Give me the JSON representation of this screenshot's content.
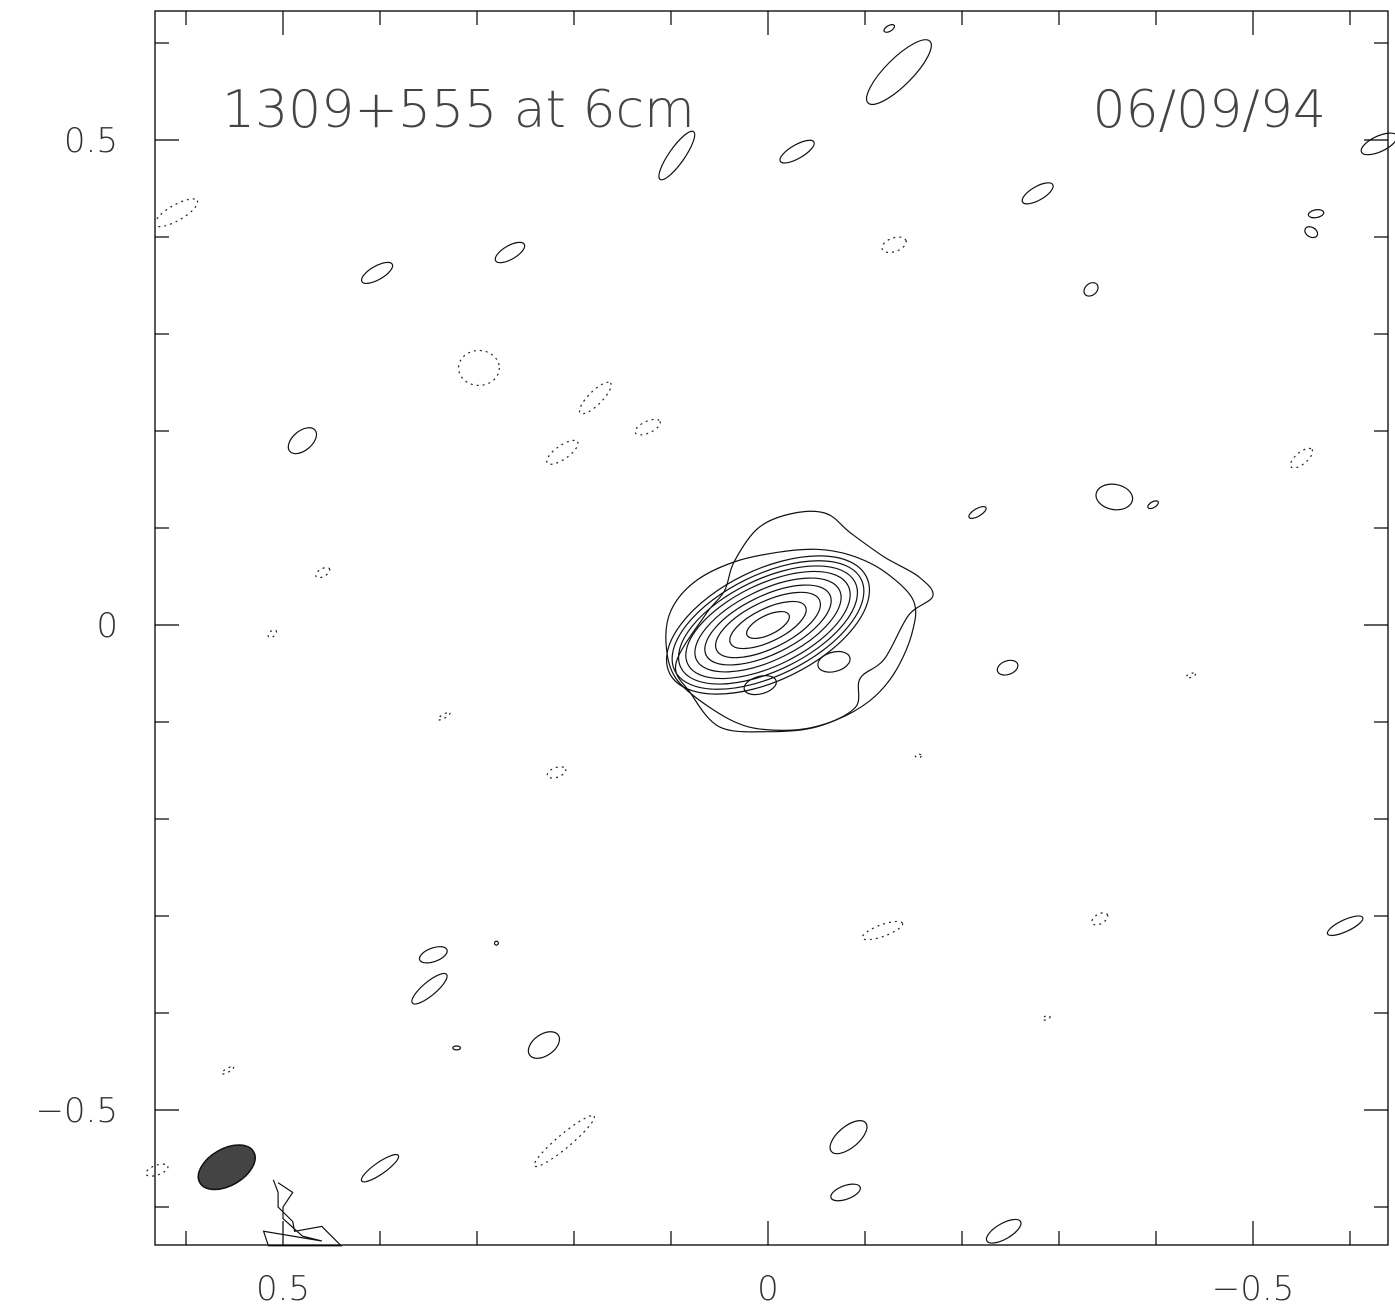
{
  "chart_data": {
    "type": "contour",
    "title": "1309+555 at 6cm",
    "date": "06/09/94",
    "xlabel": "",
    "ylabel": "",
    "xlim": [
      0.635,
      -0.635
    ],
    "ylim": [
      -0.635,
      0.635
    ],
    "x_axis_reversed": true,
    "x_tick_labels": [
      {
        "value": 0.5,
        "label": "0.5"
      },
      {
        "value": 0,
        "label": "0"
      },
      {
        "value": -0.5,
        "label": "−0.5"
      }
    ],
    "y_tick_labels": [
      {
        "value": 0.5,
        "label": "0.5"
      },
      {
        "value": 0,
        "label": "0"
      },
      {
        "value": -0.5,
        "label": "−0.5"
      }
    ],
    "minor_tick_step": 0.1,
    "source_peak": {
      "x": 0.0,
      "y": 0.0
    },
    "central_component": {
      "center": [
        0.0,
        0.0
      ],
      "position_angle_deg": -26,
      "levels": [
        {
          "a": 0.024,
          "b": 0.01
        },
        {
          "a": 0.043,
          "b": 0.017
        },
        {
          "a": 0.059,
          "b": 0.024
        },
        {
          "a": 0.071,
          "b": 0.03
        },
        {
          "a": 0.082,
          "b": 0.036
        },
        {
          "a": 0.092,
          "b": 0.042
        },
        {
          "a": 0.1,
          "b": 0.047
        },
        {
          "a": 0.107,
          "b": 0.052
        },
        {
          "a": 0.113,
          "b": 0.057
        }
      ],
      "outer_contours": [
        [
          [
            0.095,
            -0.055
          ],
          [
            0.06,
            -0.085
          ],
          [
            0.02,
            -0.105
          ],
          [
            -0.03,
            -0.108
          ],
          [
            -0.07,
            -0.098
          ],
          [
            -0.105,
            -0.078
          ],
          [
            -0.13,
            -0.05
          ],
          [
            -0.148,
            -0.01
          ],
          [
            -0.15,
            0.025
          ],
          [
            -0.12,
            0.055
          ],
          [
            -0.085,
            0.072
          ],
          [
            -0.05,
            0.078
          ],
          [
            -0.01,
            0.075
          ],
          [
            0.035,
            0.065
          ],
          [
            0.075,
            0.045
          ],
          [
            0.1,
            0.015
          ],
          [
            0.105,
            -0.02
          ]
        ],
        [
          [
            0.05,
            -0.105
          ],
          [
            0.0,
            -0.11
          ],
          [
            -0.05,
            -0.105
          ],
          [
            -0.09,
            -0.085
          ],
          [
            -0.095,
            -0.055
          ],
          [
            -0.12,
            -0.035
          ],
          [
            -0.145,
            0.01
          ],
          [
            -0.17,
            0.03
          ],
          [
            -0.155,
            0.05
          ],
          [
            -0.12,
            0.07
          ],
          [
            -0.085,
            0.095
          ],
          [
            -0.06,
            0.115
          ],
          [
            -0.025,
            0.115
          ],
          [
            0.01,
            0.1
          ],
          [
            0.035,
            0.065
          ],
          [
            0.045,
            0.035
          ],
          [
            0.065,
            0.01
          ],
          [
            0.095,
            -0.04
          ],
          [
            0.08,
            -0.07
          ]
        ]
      ],
      "inner_blobs": [
        {
          "center": [
            0.008,
            -0.062
          ],
          "a": 0.017,
          "b": 0.009,
          "angle": -15
        },
        {
          "center": [
            -0.068,
            -0.038
          ],
          "a": 0.017,
          "b": 0.01,
          "angle": -15
        }
      ]
    },
    "positive_noise_contours": [
      {
        "center": [
          0.48,
          0.19
        ],
        "a": 0.017,
        "b": 0.01,
        "angle": -40
      },
      {
        "center": [
          0.403,
          0.363
        ],
        "a": 0.018,
        "b": 0.007,
        "angle": -30
      },
      {
        "center": [
          0.266,
          0.384
        ],
        "a": 0.017,
        "b": 0.007,
        "angle": -30
      },
      {
        "center": [
          0.094,
          0.484
        ],
        "a": 0.03,
        "b": 0.008,
        "angle": -55
      },
      {
        "center": [
          -0.03,
          0.488
        ],
        "a": 0.02,
        "b": 0.007,
        "angle": -30
      },
      {
        "center": [
          -0.135,
          0.57
        ],
        "a": 0.045,
        "b": 0.014,
        "angle": -45
      },
      {
        "center": [
          -0.125,
          0.615
        ],
        "a": 0.006,
        "b": 0.003,
        "angle": -30
      },
      {
        "center": [
          -0.278,
          0.445
        ],
        "a": 0.018,
        "b": 0.007,
        "angle": -30
      },
      {
        "center": [
          -0.333,
          0.346
        ],
        "a": 0.008,
        "b": 0.006,
        "angle": -40
      },
      {
        "center": [
          -0.357,
          0.132
        ],
        "a": 0.019,
        "b": 0.013,
        "angle": 10
      },
      {
        "center": [
          -0.397,
          0.124
        ],
        "a": 0.006,
        "b": 0.003,
        "angle": -30
      },
      {
        "center": [
          -0.216,
          0.116
        ],
        "a": 0.01,
        "b": 0.004,
        "angle": -30
      },
      {
        "center": [
          -0.247,
          -0.044
        ],
        "a": 0.011,
        "b": 0.007,
        "angle": -20
      },
      {
        "center": [
          -0.565,
          0.424
        ],
        "a": 0.008,
        "b": 0.004,
        "angle": -10
      },
      {
        "center": [
          -0.56,
          0.405
        ],
        "a": 0.007,
        "b": 0.005,
        "angle": 30
      },
      {
        "center": [
          -0.63,
          0.496
        ],
        "a": 0.02,
        "b": 0.008,
        "angle": -25
      },
      {
        "center": [
          -0.595,
          -0.31
        ],
        "a": 0.02,
        "b": 0.006,
        "angle": -25
      },
      {
        "center": [
          0.345,
          -0.34
        ],
        "a": 0.015,
        "b": 0.007,
        "angle": -20
      },
      {
        "center": [
          0.349,
          -0.375
        ],
        "a": 0.023,
        "b": 0.007,
        "angle": -40
      },
      {
        "center": [
          0.231,
          -0.433
        ],
        "a": 0.018,
        "b": 0.011,
        "angle": -35
      },
      {
        "center": [
          0.321,
          -0.436
        ],
        "a": 0.004,
        "b": 0.002,
        "angle": 0
      },
      {
        "center": [
          0.28,
          -0.328
        ],
        "a": 0.002,
        "b": 0.002,
        "angle": 0
      },
      {
        "center": [
          -0.083,
          -0.528
        ],
        "a": 0.023,
        "b": 0.011,
        "angle": -40
      },
      {
        "center": [
          -0.08,
          -0.585
        ],
        "a": 0.016,
        "b": 0.007,
        "angle": -20
      },
      {
        "center": [
          0.4,
          -0.56
        ],
        "a": 0.023,
        "b": 0.006,
        "angle": -35
      },
      {
        "center": [
          -0.243,
          -0.625
        ],
        "a": 0.02,
        "b": 0.008,
        "angle": -30
      }
    ],
    "lower_left_contour": [
      [
        0.51,
        -0.572
      ],
      [
        0.505,
        -0.585
      ],
      [
        0.505,
        -0.6
      ],
      [
        0.49,
        -0.615
      ],
      [
        0.488,
        -0.625
      ],
      [
        0.46,
        -0.62
      ],
      [
        0.44,
        -0.64
      ],
      [
        0.515,
        -0.64
      ],
      [
        0.52,
        -0.625
      ],
      [
        0.46,
        -0.635
      ],
      [
        0.48,
        -0.63
      ],
      [
        0.5,
        -0.612
      ],
      [
        0.5,
        -0.6
      ],
      [
        0.49,
        -0.585
      ],
      [
        0.505,
        -0.575
      ]
    ],
    "negative_noise_contours": [
      {
        "center": [
          0.61,
          0.425
        ],
        "a": 0.025,
        "b": 0.008,
        "angle": -30
      },
      {
        "center": [
          0.298,
          0.265
        ],
        "a": 0.021,
        "b": 0.018,
        "angle": 0
      },
      {
        "center": [
          0.178,
          0.234
        ],
        "a": 0.022,
        "b": 0.007,
        "angle": -45
      },
      {
        "center": [
          0.124,
          0.204
        ],
        "a": 0.014,
        "b": 0.006,
        "angle": -25
      },
      {
        "center": [
          0.212,
          0.178
        ],
        "a": 0.019,
        "b": 0.007,
        "angle": -35
      },
      {
        "center": [
          -0.13,
          0.392
        ],
        "a": 0.013,
        "b": 0.007,
        "angle": -20
      },
      {
        "center": [
          -0.55,
          0.172
        ],
        "a": 0.014,
        "b": 0.006,
        "angle": -40
      },
      {
        "center": [
          0.459,
          0.054
        ],
        "a": 0.008,
        "b": 0.004,
        "angle": -30
      },
      {
        "center": [
          0.511,
          -0.009
        ],
        "a": 0.005,
        "b": 0.003,
        "angle": -40
      },
      {
        "center": [
          0.334,
          -0.094
        ],
        "a": 0.007,
        "b": 0.002,
        "angle": -30
      },
      {
        "center": [
          0.218,
          -0.152
        ],
        "a": 0.01,
        "b": 0.005,
        "angle": -20
      },
      {
        "center": [
          -0.155,
          -0.135
        ],
        "a": 0.003,
        "b": 0.002,
        "angle": 0
      },
      {
        "center": [
          -0.436,
          -0.052
        ],
        "a": 0.005,
        "b": 0.002,
        "angle": -20
      },
      {
        "center": [
          -0.118,
          -0.315
        ],
        "a": 0.022,
        "b": 0.006,
        "angle": -20
      },
      {
        "center": [
          -0.342,
          -0.303
        ],
        "a": 0.009,
        "b": 0.005,
        "angle": -30
      },
      {
        "center": [
          -0.287,
          -0.405
        ],
        "a": 0.004,
        "b": 0.002,
        "angle": -20
      },
      {
        "center": [
          0.557,
          -0.459
        ],
        "a": 0.007,
        "b": 0.002,
        "angle": -30
      },
      {
        "center": [
          0.21,
          -0.532
        ],
        "a": 0.04,
        "b": 0.007,
        "angle": -40
      },
      {
        "center": [
          0.63,
          -0.562
        ],
        "a": 0.012,
        "b": 0.005,
        "angle": -20
      }
    ],
    "restoring_beam": {
      "center": [
        0.558,
        -0.559
      ],
      "major_axis": 0.064,
      "minor_axis": 0.019,
      "position_angle_deg": -30
    }
  }
}
